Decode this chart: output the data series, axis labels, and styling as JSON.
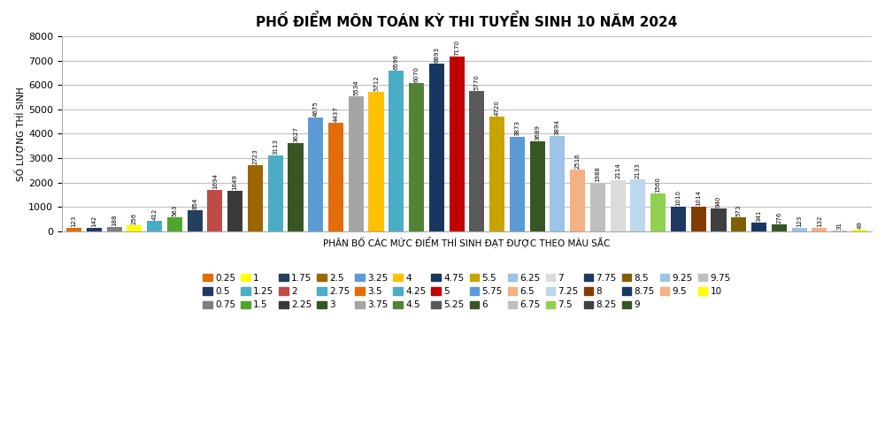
{
  "title": "PHỐ ĐIỂM MÔN TOÁN KỲ THI TUYỂN SINH 10 NĂM 2024",
  "xlabel": "PHÂN BỐ CÁC MỨC ĐIỂM THÍ SINH ĐẠT ĐƯỢC THEO MÀU SẮC",
  "ylabel": "SỐ LƯỢNG THÍ SINH",
  "ylim": [
    0,
    8000
  ],
  "yticks": [
    0,
    1000,
    2000,
    3000,
    4000,
    5000,
    6000,
    7000,
    8000
  ],
  "bars": [
    {
      "label": "0.25",
      "value": 123,
      "color": "#E36C09"
    },
    {
      "label": "0.5",
      "value": 142,
      "color": "#1F3864"
    },
    {
      "label": "0.75",
      "value": 188,
      "color": "#7F7F7F"
    },
    {
      "label": "1",
      "value": 256,
      "color": "#FFFF00"
    },
    {
      "label": "1.25",
      "value": 412,
      "color": "#4BACC6"
    },
    {
      "label": "1.5",
      "value": 563,
      "color": "#4EA72A"
    },
    {
      "label": "1.75",
      "value": 854,
      "color": "#243F60"
    },
    {
      "label": "2",
      "value": 1694,
      "color": "#BE4B48"
    },
    {
      "label": "2.25",
      "value": 1649,
      "color": "#3A3A3A"
    },
    {
      "label": "2.5",
      "value": 2723,
      "color": "#9C6500"
    },
    {
      "label": "2.75",
      "value": 3113,
      "color": "#4BACC6"
    },
    {
      "label": "3",
      "value": 3627,
      "color": "#375623"
    },
    {
      "label": "3.25",
      "value": 4675,
      "color": "#5B9BD5"
    },
    {
      "label": "3.5",
      "value": 4437,
      "color": "#E36C09"
    },
    {
      "label": "3.75",
      "value": 5534,
      "color": "#A5A5A5"
    },
    {
      "label": "4",
      "value": 5712,
      "color": "#FFC000"
    },
    {
      "label": "4.25",
      "value": 6596,
      "color": "#4BACC6"
    },
    {
      "label": "4.5",
      "value": 6070,
      "color": "#548235"
    },
    {
      "label": "4.75",
      "value": 6893,
      "color": "#17375E"
    },
    {
      "label": "5",
      "value": 7170,
      "color": "#C00000"
    },
    {
      "label": "5.25",
      "value": 5770,
      "color": "#595959"
    },
    {
      "label": "5.5",
      "value": 4720,
      "color": "#C8A400"
    },
    {
      "label": "5.75",
      "value": 3873,
      "color": "#5B9BD5"
    },
    {
      "label": "6",
      "value": 3689,
      "color": "#375623"
    },
    {
      "label": "6.25",
      "value": 3894,
      "color": "#9DC3E6"
    },
    {
      "label": "6.5",
      "value": 2516,
      "color": "#F4B183"
    },
    {
      "label": "6.75",
      "value": 1988,
      "color": "#BFBFBF"
    },
    {
      "label": "7",
      "value": 2114,
      "color": "#DBDBDB"
    },
    {
      "label": "7.25",
      "value": 2133,
      "color": "#BDD7EE"
    },
    {
      "label": "7.5",
      "value": 1560,
      "color": "#92D050"
    },
    {
      "label": "7.75",
      "value": 1010,
      "color": "#1F3864"
    },
    {
      "label": "8",
      "value": 1014,
      "color": "#833C00"
    },
    {
      "label": "8.25",
      "value": 940,
      "color": "#404040"
    },
    {
      "label": "8.5",
      "value": 573,
      "color": "#7F6000"
    },
    {
      "label": "8.75",
      "value": 341,
      "color": "#17375E"
    },
    {
      "label": "9",
      "value": 276,
      "color": "#375623"
    },
    {
      "label": "9.25",
      "value": 123,
      "color": "#9DC3E6"
    },
    {
      "label": "9.5",
      "value": 132,
      "color": "#F4B183"
    },
    {
      "label": "9.75",
      "value": 31,
      "color": "#BFBFBF"
    },
    {
      "label": "10",
      "value": 49,
      "color": "#FFFF00"
    }
  ],
  "background_color": "#FFFFFF",
  "title_fontsize": 11,
  "label_fontsize": 7.5,
  "tick_fontsize": 8,
  "value_fontsize": 5.0,
  "legend_fontsize": 7.5,
  "legend_cols": 14,
  "grid_color": "#C0C0C0"
}
